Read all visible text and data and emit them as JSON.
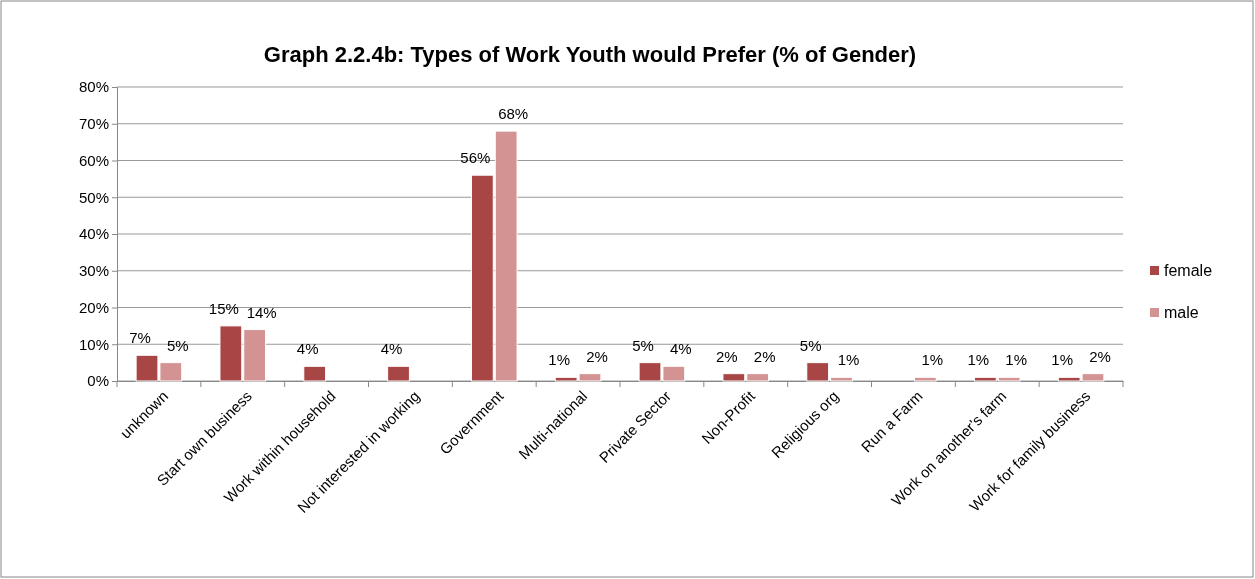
{
  "chart_data": {
    "type": "bar",
    "title": "Graph 2.2.4b: Types of Work Youth would Prefer (% of Gender)",
    "categories": [
      "unknown",
      "Start own business",
      "Work within household",
      "Not interested in working",
      "Government",
      "Multi-national",
      "Private Sector",
      "Non-Profit",
      "Religious org",
      "Run a Farm",
      "Work on another's farm",
      "Work for family business"
    ],
    "series": [
      {
        "name": "female",
        "color": "#a84646",
        "values": [
          7,
          15,
          4,
          4,
          56,
          1,
          5,
          2,
          5,
          null,
          1,
          1
        ],
        "value_labels": [
          "7%",
          "15%",
          "4%",
          "4%",
          "56%",
          "1%",
          "5%",
          "2%",
          "5%",
          null,
          "1%",
          "1%"
        ]
      },
      {
        "name": "male",
        "color": "#d39393",
        "values": [
          5,
          14,
          null,
          null,
          68,
          2,
          4,
          2,
          1,
          1,
          1,
          2
        ],
        "value_labels": [
          "5%",
          "14%",
          null,
          null,
          "68%",
          "2%",
          "4%",
          "2%",
          "1%",
          "1%",
          "1%",
          "2%"
        ]
      }
    ],
    "ylim": [
      0,
      80
    ],
    "yticks": [
      {
        "value": 0,
        "label": "0%"
      },
      {
        "value": 10,
        "label": "10%"
      },
      {
        "value": 20,
        "label": "20%"
      },
      {
        "value": 30,
        "label": "30%"
      },
      {
        "value": 40,
        "label": "40%"
      },
      {
        "value": 50,
        "label": "50%"
      },
      {
        "value": 60,
        "label": "60%"
      },
      {
        "value": 70,
        "label": "70%"
      },
      {
        "value": 80,
        "label": "80%"
      }
    ],
    "grid": "y",
    "legend": "right"
  }
}
